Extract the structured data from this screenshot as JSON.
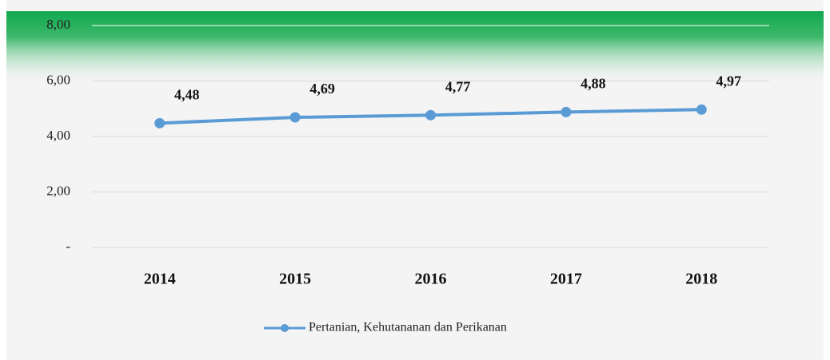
{
  "chart_data": {
    "type": "line",
    "categories": [
      "2014",
      "2015",
      "2016",
      "2017",
      "2018"
    ],
    "series": [
      {
        "name": "Pertanian, Kehutananan dan Perikanan",
        "color": "#5b9bd5",
        "values": [
          4.48,
          4.69,
          4.77,
          4.88,
          4.97
        ],
        "value_labels": [
          "4,48",
          "4,69",
          "4,77",
          "4,88",
          "4,97"
        ]
      }
    ],
    "ylim": [
      0,
      8
    ],
    "yticks": [
      {
        "value": 0,
        "label": "-"
      },
      {
        "value": 2,
        "label": "2,00"
      },
      {
        "value": 4,
        "label": "4,00"
      },
      {
        "value": 6,
        "label": "6,00"
      },
      {
        "value": 8,
        "label": "8,00"
      }
    ],
    "grid": true,
    "legend": "bottom"
  }
}
